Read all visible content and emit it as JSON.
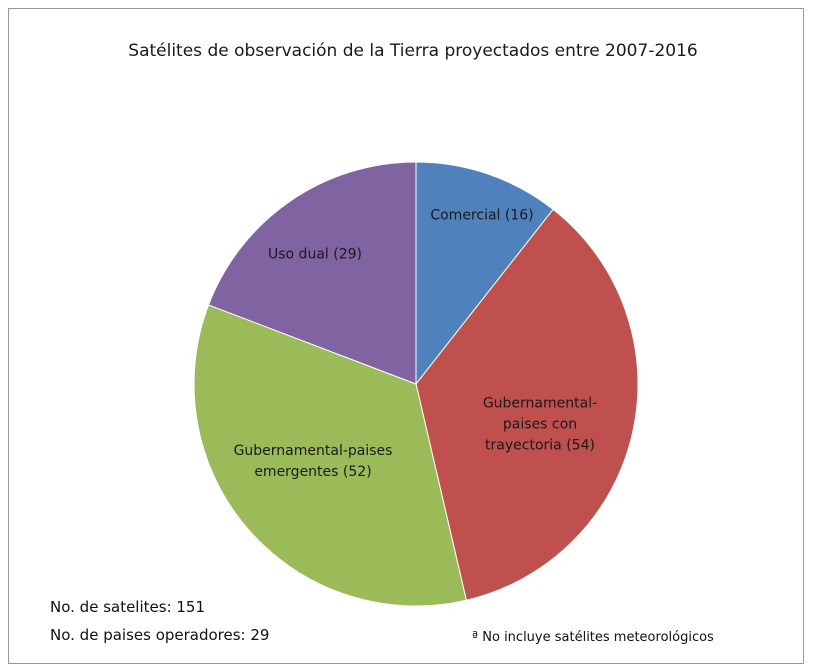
{
  "chart_data": {
    "type": "pie",
    "title": "Satélites de observación de la Tierra proyectados entre 2007-2016",
    "categories": [
      "Comercial",
      "Gubernamental-paises con trayectoria",
      "Gubernamental-paises emergentes",
      "Uso dual"
    ],
    "values": [
      16,
      54,
      52,
      29
    ],
    "value_labels": [
      "(16)",
      "(54)",
      "(52)",
      "(29)"
    ],
    "colors": [
      "#4f81bd",
      "#c0504d",
      "#9bbb59",
      "#8064a2"
    ],
    "annotations": [
      "No. de satelites: 151",
      "No. de paises operadores: 29",
      "ª No incluye satélites meteorológicos"
    ]
  }
}
